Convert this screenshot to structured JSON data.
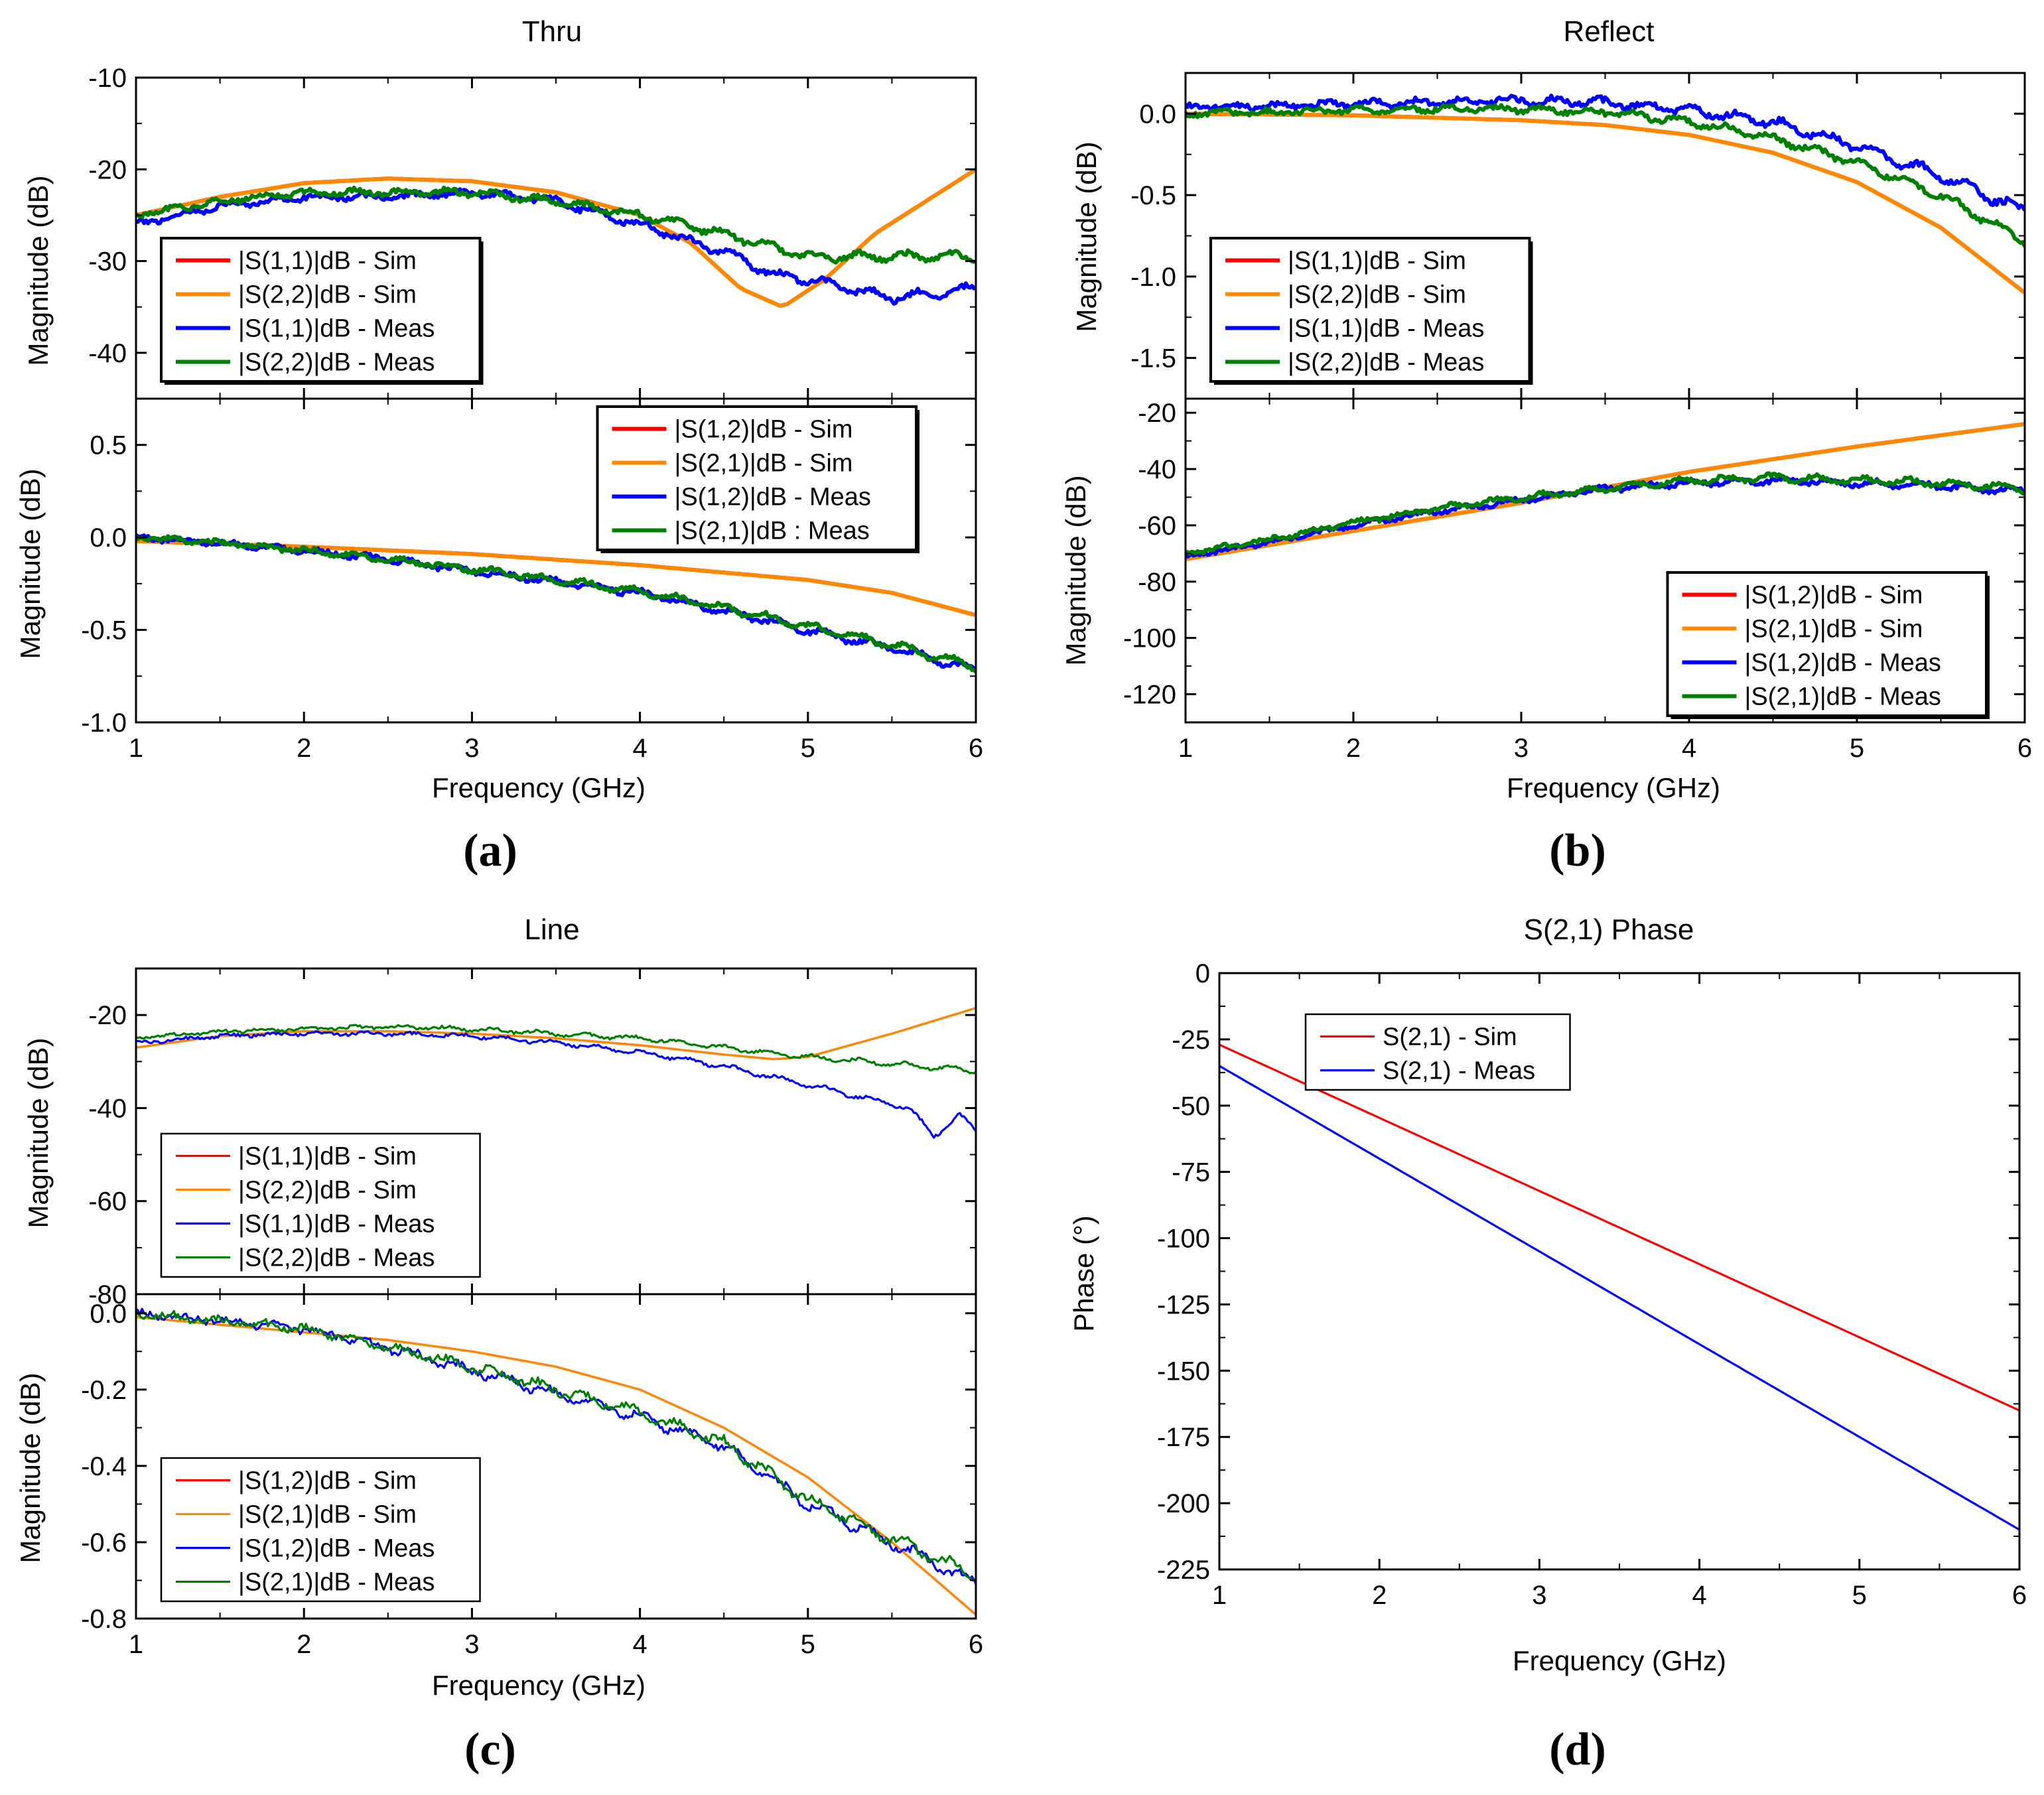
{
  "colors": {
    "sim_red": "#ff0000",
    "sim_orange": "#ff8800",
    "meas_blue": "#0000ff",
    "meas_green": "#008000",
    "phase_red": "#ff0000",
    "phase_blue": "#0000ff"
  },
  "chart_data": [
    {
      "id": "a_top",
      "type": "line",
      "title": "Thru",
      "panel_label": "(a)",
      "xlabel": "Frequency (GHz)",
      "ylabel": "Magnitude (dB)",
      "xlim": [
        1,
        6
      ],
      "ylim": [
        -45,
        -10
      ],
      "yticks": [
        -10,
        -20,
        -30,
        -40
      ],
      "ytick_labels": [
        "-10",
        "-20",
        "-30",
        "-40"
      ],
      "legend_position": "bottom-left",
      "legend_style": "thick",
      "series": [
        {
          "name": "|S(1,1)|dB - Sim",
          "color": "sim_red",
          "noise": 0,
          "x": [
            1,
            1.5,
            2,
            2.5,
            3,
            3.5,
            4,
            4.3,
            4.6,
            4.85,
            5.1,
            5.4,
            5.7,
            6
          ],
          "y": [
            -25,
            -23,
            -21.5,
            -21,
            -21.3,
            -22.5,
            -25,
            -28,
            -33,
            -35,
            -32,
            -27,
            -23.5,
            -20
          ]
        },
        {
          "name": "|S(2,2)|dB - Sim",
          "color": "sim_orange",
          "noise": 0,
          "x": [
            1,
            1.5,
            2,
            2.5,
            3,
            3.5,
            4,
            4.3,
            4.6,
            4.85,
            5.1,
            5.4,
            5.7,
            6
          ],
          "y": [
            -25,
            -23,
            -21.5,
            -21,
            -21.3,
            -22.5,
            -25,
            -28,
            -33,
            -35,
            -32,
            -27,
            -23.5,
            -20
          ]
        },
        {
          "name": "|S(1,1)|dB - Meas",
          "color": "meas_blue",
          "noise": 0.45,
          "x": [
            1,
            1.5,
            2,
            2.5,
            3,
            3.5,
            4,
            4.5,
            4.8,
            5,
            5.5,
            6
          ],
          "y": [
            -26,
            -24,
            -23,
            -23,
            -22.5,
            -23.5,
            -26,
            -29,
            -31.5,
            -32,
            -34,
            -33
          ]
        },
        {
          "name": "|S(2,2)|dB - Meas",
          "color": "meas_green",
          "noise": 0.45,
          "x": [
            1,
            1.5,
            2,
            2.5,
            3,
            3.5,
            4,
            4.5,
            5,
            5.5,
            6
          ],
          "y": [
            -25,
            -23.5,
            -22.5,
            -22.5,
            -22.5,
            -23.5,
            -25,
            -27,
            -29.5,
            -29.5,
            -29.5
          ]
        }
      ]
    },
    {
      "id": "a_bot",
      "type": "line",
      "title": "",
      "xlabel": "Frequency (GHz)",
      "ylabel": "Magnitude (dB)",
      "xlim": [
        1,
        6
      ],
      "ylim": [
        -1.0,
        0.75
      ],
      "xticks": [
        1,
        2,
        3,
        4,
        5,
        6
      ],
      "xtick_labels": [
        "1",
        "2",
        "3",
        "4",
        "5",
        "6"
      ],
      "yticks": [
        0.5,
        0.0,
        -0.5,
        -1.0
      ],
      "ytick_labels": [
        "0.5",
        "0.0",
        "-0.5",
        "-1.0"
      ],
      "legend_position": "top-right",
      "legend_style": "thick",
      "series": [
        {
          "name": "|S(1,2)|dB - Sim",
          "color": "sim_red",
          "noise": 0,
          "x": [
            1,
            2,
            3,
            4,
            5,
            5.5,
            6
          ],
          "y": [
            -0.02,
            -0.05,
            -0.09,
            -0.15,
            -0.23,
            -0.3,
            -0.42
          ]
        },
        {
          "name": "|S(2,1)|dB - Sim",
          "color": "sim_orange",
          "noise": 0,
          "x": [
            1,
            2,
            3,
            4,
            5,
            5.5,
            6
          ],
          "y": [
            -0.02,
            -0.05,
            -0.09,
            -0.15,
            -0.23,
            -0.3,
            -0.42
          ]
        },
        {
          "name": "|S(1,2)|dB - Meas",
          "color": "meas_blue",
          "noise": 0.02,
          "x": [
            1,
            1.5,
            2,
            2.5,
            3,
            3.5,
            4,
            4.5,
            5,
            5.5,
            6
          ],
          "y": [
            0,
            -0.03,
            -0.07,
            -0.12,
            -0.18,
            -0.24,
            -0.3,
            -0.4,
            -0.5,
            -0.6,
            -0.72
          ]
        },
        {
          "name": "|S(2,1)|dB : Meas",
          "color": "meas_green",
          "noise": 0.02,
          "x": [
            1,
            1.5,
            2,
            2.5,
            3,
            3.5,
            4,
            4.5,
            5,
            5.5,
            6
          ],
          "y": [
            0,
            -0.03,
            -0.07,
            -0.12,
            -0.17,
            -0.23,
            -0.29,
            -0.38,
            -0.48,
            -0.58,
            -0.7
          ]
        }
      ]
    },
    {
      "id": "b_top",
      "type": "line",
      "title": "Reflect",
      "panel_label": "(b)",
      "xlabel": "Frequency (GHz)",
      "ylabel": "Magnitude (dB)",
      "xlim": [
        1,
        6
      ],
      "ylim": [
        -1.75,
        0.25
      ],
      "yticks": [
        0.0,
        -0.5,
        -1.0,
        -1.5
      ],
      "ytick_labels": [
        "0.0",
        "-0.5",
        "-1.0",
        "-1.5"
      ],
      "legend_position": "bottom-left",
      "legend_style": "thick",
      "series": [
        {
          "name": "|S(1,1)|dB - Sim",
          "color": "sim_red",
          "noise": 0,
          "x": [
            1,
            2,
            3,
            3.5,
            4,
            4.5,
            5,
            5.5,
            6
          ],
          "y": [
            0,
            -0.01,
            -0.04,
            -0.07,
            -0.13,
            -0.24,
            -0.42,
            -0.7,
            -1.1
          ]
        },
        {
          "name": "|S(2,2)|dB - Sim",
          "color": "sim_orange",
          "noise": 0,
          "x": [
            1,
            2,
            3,
            3.5,
            4,
            4.5,
            5,
            5.5,
            6
          ],
          "y": [
            0,
            -0.01,
            -0.04,
            -0.07,
            -0.13,
            -0.24,
            -0.42,
            -0.7,
            -1.1
          ]
        },
        {
          "name": "|S(1,1)|dB - Meas",
          "color": "meas_blue",
          "noise": 0.03,
          "x": [
            1,
            1.5,
            2,
            2.5,
            3,
            3.5,
            4,
            4.5,
            5,
            5.5,
            6
          ],
          "y": [
            0.04,
            0.05,
            0.06,
            0.07,
            0.08,
            0.07,
            0.02,
            -0.05,
            -0.2,
            -0.38,
            -0.6
          ]
        },
        {
          "name": "|S(2,2)|dB - Meas",
          "color": "meas_green",
          "noise": 0.025,
          "x": [
            1,
            1.5,
            2,
            2.5,
            3,
            3.5,
            4,
            4.5,
            5,
            5.5,
            6
          ],
          "y": [
            0,
            0.01,
            0.02,
            0.03,
            0.03,
            0.01,
            -0.05,
            -0.15,
            -0.3,
            -0.5,
            -0.78
          ]
        }
      ]
    },
    {
      "id": "b_bot",
      "type": "line",
      "title": "",
      "xlabel": "Frequency (GHz)",
      "ylabel": "Magnitude (dB)",
      "xlim": [
        1,
        6
      ],
      "ylim": [
        -130,
        -15
      ],
      "xticks": [
        1,
        2,
        3,
        4,
        5,
        6
      ],
      "xtick_labels": [
        "1",
        "2",
        "3",
        "4",
        "5",
        "6"
      ],
      "yticks": [
        -20,
        -40,
        -60,
        -80,
        -100,
        -120
      ],
      "ytick_labels": [
        "-20",
        "-40",
        "-60",
        "-80",
        "-100",
        "-120"
      ],
      "legend_position": "bottom-right",
      "legend_style": "thick",
      "series": [
        {
          "name": "|S(1,2)|dB - Sim",
          "color": "sim_red",
          "noise": 0,
          "x": [
            1,
            2,
            3,
            4,
            5,
            6
          ],
          "y": [
            -72,
            -62,
            -52,
            -41,
            -32,
            -24
          ]
        },
        {
          "name": "|S(2,1)|dB - Sim",
          "color": "sim_orange",
          "noise": 0,
          "x": [
            1,
            2,
            3,
            4,
            5,
            6
          ],
          "y": [
            -72,
            -62,
            -52,
            -41,
            -32,
            -24
          ]
        },
        {
          "name": "|S(1,2)|dB - Meas",
          "color": "meas_blue",
          "noise": 1.2,
          "x": [
            1,
            1.5,
            2,
            2.5,
            3,
            3.5,
            4,
            4.5,
            5,
            5.5,
            6
          ],
          "y": [
            -71,
            -66,
            -60,
            -55,
            -51,
            -47,
            -45,
            -44,
            -45,
            -46,
            -48
          ]
        },
        {
          "name": "|S(2,1)|dB - Meas",
          "color": "meas_green",
          "noise": 1.2,
          "x": [
            1,
            1.5,
            2,
            2.5,
            3,
            3.5,
            4,
            4.5,
            5,
            5.5,
            6
          ],
          "y": [
            -70,
            -65,
            -59,
            -54,
            -50,
            -47,
            -44,
            -43,
            -44,
            -45,
            -47
          ]
        }
      ]
    },
    {
      "id": "c_top",
      "type": "line",
      "title": "Line",
      "panel_label": "(c)",
      "xlabel": "Frequency (GHz)",
      "ylabel": "Magnitude (dB)",
      "xlim": [
        1,
        6
      ],
      "ylim": [
        -80,
        -10
      ],
      "yticks": [
        -20,
        -40,
        -60,
        -80
      ],
      "ytick_labels": [
        "-20",
        "-40",
        "-60",
        "-80"
      ],
      "legend_position": "bottom-left",
      "legend_style": "thin",
      "series": [
        {
          "name": "|S(1,1)|dB - Sim",
          "color": "sim_red",
          "noise": 0,
          "x": [
            1,
            1.5,
            2,
            2.5,
            3,
            3.5,
            4,
            4.5,
            4.8,
            5,
            5.5,
            6
          ],
          "y": [
            -27,
            -24.5,
            -23.5,
            -23.5,
            -24,
            -25,
            -26.5,
            -28.5,
            -29.5,
            -29,
            -24,
            -18.5
          ]
        },
        {
          "name": "|S(2,2)|dB - Sim",
          "color": "sim_orange",
          "noise": 0,
          "x": [
            1,
            1.5,
            2,
            2.5,
            3,
            3.5,
            4,
            4.5,
            4.8,
            5,
            5.5,
            6
          ],
          "y": [
            -27,
            -24.5,
            -23.5,
            -23.5,
            -24,
            -25,
            -26.5,
            -28.5,
            -29.5,
            -29,
            -24,
            -18.5
          ]
        },
        {
          "name": "|S(1,1)|dB - Meas",
          "color": "meas_blue",
          "noise": 0.5,
          "x": [
            1,
            1.5,
            2,
            2.5,
            3,
            3.5,
            4,
            4.5,
            5,
            5.3,
            5.6,
            5.75,
            5.9,
            6
          ],
          "y": [
            -26,
            -24.5,
            -24,
            -24,
            -24.5,
            -26,
            -28,
            -31,
            -35,
            -37.5,
            -40,
            -46,
            -41.5,
            -45
          ]
        },
        {
          "name": "|S(2,2)|dB - Meas",
          "color": "meas_green",
          "noise": 0.5,
          "x": [
            1,
            1.5,
            2,
            2.5,
            3,
            3.5,
            4,
            4.5,
            5,
            5.5,
            6
          ],
          "y": [
            -25,
            -23.5,
            -23,
            -22.5,
            -23,
            -24,
            -25,
            -27,
            -29,
            -30.5,
            -32
          ]
        }
      ]
    },
    {
      "id": "c_bot",
      "type": "line",
      "title": "",
      "xlabel": "Frequency (GHz)",
      "ylabel": "Magnitude (dB)",
      "xlim": [
        1,
        6
      ],
      "ylim": [
        -0.8,
        0.05
      ],
      "xticks": [
        1,
        2,
        3,
        4,
        5,
        6
      ],
      "xtick_labels": [
        "1",
        "2",
        "3",
        "4",
        "5",
        "6"
      ],
      "yticks": [
        0.0,
        -0.2,
        -0.4,
        -0.6,
        -0.8
      ],
      "ytick_labels": [
        "0.0",
        "-0.2",
        "-0.4",
        "-0.6",
        "-0.8"
      ],
      "legend_position": "bottom-left",
      "legend_style": "thin",
      "series": [
        {
          "name": "|S(1,2)|dB - Sim",
          "color": "sim_red",
          "noise": 0,
          "x": [
            1,
            1.5,
            2,
            2.5,
            3,
            3.5,
            4,
            4.5,
            5,
            5.5,
            6
          ],
          "y": [
            -0.01,
            -0.03,
            -0.05,
            -0.07,
            -0.1,
            -0.14,
            -0.2,
            -0.3,
            -0.43,
            -0.6,
            -0.79
          ]
        },
        {
          "name": "|S(2,1)|dB - Sim",
          "color": "sim_orange",
          "noise": 0,
          "x": [
            1,
            1.5,
            2,
            2.5,
            3,
            3.5,
            4,
            4.5,
            5,
            5.5,
            6
          ],
          "y": [
            -0.01,
            -0.03,
            -0.05,
            -0.07,
            -0.1,
            -0.14,
            -0.2,
            -0.3,
            -0.43,
            -0.6,
            -0.79
          ]
        },
        {
          "name": "|S(1,2)|dB - Meas",
          "color": "meas_blue",
          "noise": 0.015,
          "x": [
            1,
            1.5,
            2,
            2.5,
            3,
            3.5,
            4,
            4.5,
            5,
            5.5,
            6
          ],
          "y": [
            0,
            -0.02,
            -0.04,
            -0.09,
            -0.15,
            -0.21,
            -0.27,
            -0.35,
            -0.5,
            -0.6,
            -0.71
          ]
        },
        {
          "name": "|S(2,1)|dB - Meas",
          "color": "meas_green",
          "noise": 0.015,
          "x": [
            1,
            1.5,
            2,
            2.5,
            3,
            3.5,
            4,
            4.5,
            5,
            5.5,
            6
          ],
          "y": [
            0,
            -0.02,
            -0.04,
            -0.09,
            -0.14,
            -0.2,
            -0.26,
            -0.34,
            -0.49,
            -0.59,
            -0.69
          ]
        }
      ]
    },
    {
      "id": "d",
      "type": "line",
      "title": "S(2,1) Phase",
      "panel_label": "(d)",
      "xlabel": "Frequency (GHz)",
      "ylabel": "Phase (°)",
      "xlim": [
        1,
        6
      ],
      "ylim": [
        -225,
        0
      ],
      "xticks": [
        1,
        2,
        3,
        4,
        5,
        6
      ],
      "xtick_labels": [
        "1",
        "2",
        "3",
        "4",
        "5",
        "6"
      ],
      "yticks": [
        0,
        -25,
        -50,
        -75,
        -100,
        -125,
        -150,
        -175,
        -200,
        -225
      ],
      "ytick_labels": [
        "0",
        "-25",
        "-50",
        "-75",
        "-100",
        "-125",
        "-150",
        "-175",
        "-200",
        "-225"
      ],
      "legend_position": "top-left",
      "legend_style": "thin",
      "series": [
        {
          "name": "S(2,1) - Sim",
          "color": "phase_red",
          "noise": 0,
          "x": [
            1,
            6
          ],
          "y": [
            -27,
            -165
          ]
        },
        {
          "name": "S(2,1) - Meas",
          "color": "phase_blue",
          "noise": 0,
          "x": [
            1,
            6
          ],
          "y": [
            -35,
            -210
          ]
        }
      ]
    }
  ]
}
